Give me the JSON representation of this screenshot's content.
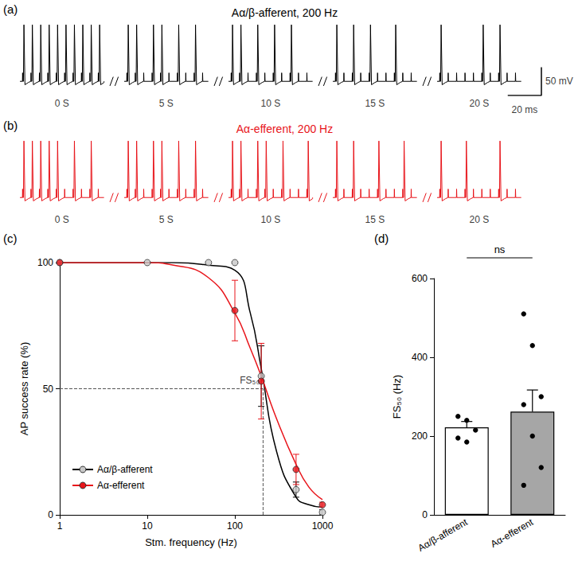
{
  "chart_data": [
    {
      "type": "trace",
      "panel": "(a)",
      "title": "Aα/β-afferent, 200 Hz",
      "color": "#000000",
      "stim_frequency": 200,
      "window_ms": 50,
      "ap_amplitude": 100,
      "artifact_amplitude": 15,
      "ylim": [
        -25,
        110
      ],
      "tick_labels": false,
      "segments": [
        {
          "label": "0 S",
          "success": [
            1,
            1,
            1,
            1,
            1,
            1,
            1,
            1,
            1,
            1
          ]
        },
        {
          "label": "5 S",
          "success": [
            1,
            1,
            0,
            1,
            1,
            0,
            1,
            0,
            1,
            0
          ]
        },
        {
          "label": "10 S",
          "success": [
            1,
            1,
            0,
            1,
            0,
            1,
            0,
            1,
            0,
            0
          ]
        },
        {
          "label": "15 S",
          "success": [
            1,
            0,
            1,
            0,
            1,
            0,
            0,
            1,
            0,
            0
          ]
        },
        {
          "label": "20 S",
          "success": [
            1,
            0,
            0,
            0,
            0,
            1,
            0,
            1,
            0,
            0
          ]
        }
      ],
      "scale_bar": {
        "y": 50,
        "y_label": "50 mV",
        "x": 20,
        "x_label": "20 ms"
      }
    },
    {
      "type": "trace",
      "panel": "(b)",
      "title": "Aα-efferent, 200 Hz",
      "color": "#e8141a",
      "stim_frequency": 200,
      "window_ms": 50,
      "ap_amplitude": 100,
      "artifact_amplitude": 15,
      "ylim": [
        -25,
        110
      ],
      "tick_labels": false,
      "segments": [
        {
          "label": "0 S",
          "success": [
            1,
            1,
            1,
            1,
            1,
            0,
            1,
            0,
            1,
            0
          ]
        },
        {
          "label": "5 S",
          "success": [
            1,
            1,
            0,
            1,
            1,
            0,
            1,
            0,
            1,
            0
          ]
        },
        {
          "label": "10 S",
          "success": [
            1,
            1,
            0,
            1,
            1,
            0,
            1,
            0,
            0,
            1
          ]
        },
        {
          "label": "15 S",
          "success": [
            1,
            0,
            1,
            0,
            0,
            1,
            0,
            0,
            1,
            0
          ]
        },
        {
          "label": "20 S",
          "success": [
            1,
            0,
            0,
            1,
            0,
            0,
            0,
            1,
            0,
            0
          ]
        }
      ]
    },
    {
      "type": "line",
      "panel": "(c)",
      "x_label": "Stm. frequency (Hz)",
      "y_label": "AP success rate (%)",
      "log": "x",
      "xlim": [
        1,
        1000
      ],
      "xticks": [
        1,
        10,
        100,
        1000
      ],
      "ylim": [
        0,
        100
      ],
      "yticks": [
        0,
        50,
        100
      ],
      "grid": false,
      "legend": "bottom left",
      "annotation": {
        "text": "FS₅₀",
        "x": 210,
        "y": 50
      },
      "series": [
        {
          "name": "Aα/β-afferent",
          "color": "#000000",
          "marker": "circle",
          "colors": [
            "#c8c8c8",
            "#c8c8c8",
            "#c8c8c8",
            "#c8c8c8",
            "#c8c8c8",
            "#c8c8c8",
            "#c8c8c8"
          ],
          "x": [
            1,
            10,
            50,
            100,
            200,
            500,
            1000
          ],
          "values": [
            100,
            100,
            100,
            100,
            55,
            10,
            1
          ],
          "error": [
            0,
            0,
            0,
            0,
            12,
            3,
            1
          ],
          "fit": {
            "x": [
              1,
              3,
              10,
              20,
              50,
              100,
              150,
              200,
              300,
              500,
              700,
              1000
            ],
            "values": [
              100,
              100,
              100,
              100,
              99,
              97,
              80,
              58,
              25,
              7,
              4,
              3
            ]
          }
        },
        {
          "name": "Aα-efferent",
          "color": "#e8141a",
          "marker": "circle",
          "x": [
            1,
            100,
            200,
            500,
            1000
          ],
          "values": [
            100,
            81,
            53,
            18,
            4
          ],
          "error": [
            0,
            12,
            15,
            6,
            1
          ],
          "fit": {
            "x": [
              1,
              3,
              10,
              20,
              50,
              100,
              150,
              200,
              300,
              500,
              700,
              1000
            ],
            "values": [
              100,
              100,
              100,
              99,
              94,
              80,
              66,
              55,
              38,
              20,
              11,
              6
            ]
          }
        }
      ]
    },
    {
      "type": "bar",
      "panel": "(d)",
      "y_label": "FS₅₀ (Hz)",
      "categories": [
        "Aα/β-afferent",
        "Aα-efferent"
      ],
      "values": [
        222,
        262
      ],
      "error": [
        15,
        55
      ],
      "colors": [
        "#ffffff",
        "#a6a6a6"
      ],
      "points": [
        [
          250,
          240,
          215,
          195,
          185
        ],
        [
          510,
          430,
          300,
          280,
          200,
          120,
          75
        ]
      ],
      "ylim": [
        0,
        600
      ],
      "yticks": [
        0,
        200,
        400,
        600
      ],
      "grid": false,
      "annotation": "ns"
    }
  ]
}
